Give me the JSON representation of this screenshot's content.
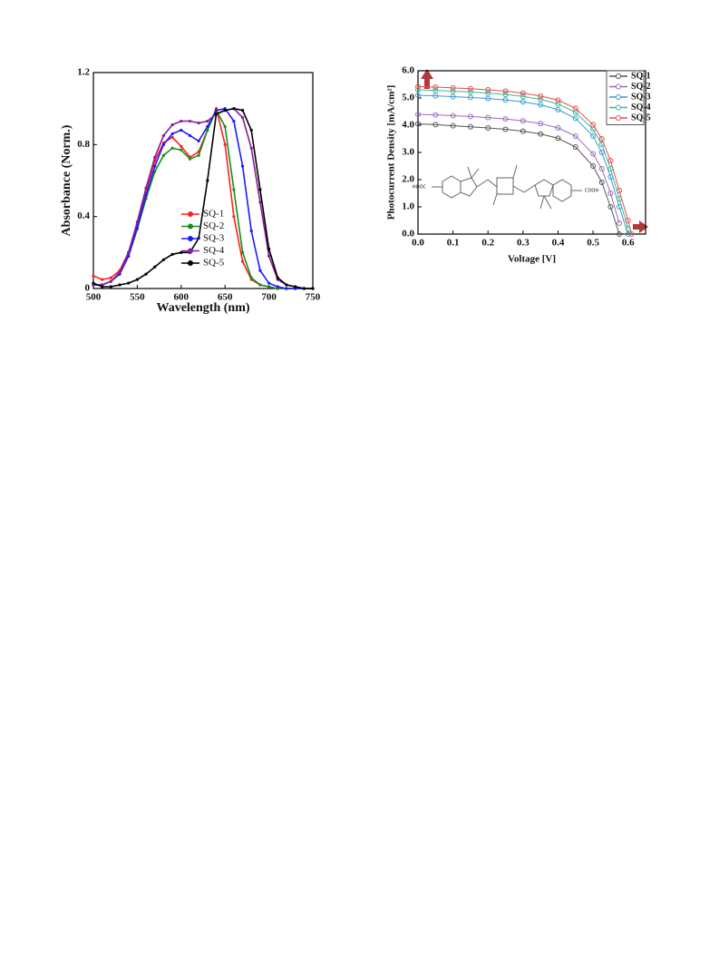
{
  "chart_data": [
    {
      "type": "line",
      "x_label": "Wavelength (nm)",
      "y_label": "Absorbance (Norm.)",
      "x": [
        500,
        510,
        520,
        530,
        540,
        550,
        560,
        570,
        580,
        590,
        600,
        610,
        620,
        630,
        640,
        650,
        660,
        670,
        680,
        690,
        700,
        710,
        720,
        730,
        740,
        750
      ],
      "series": [
        {
          "name": "SQ-1",
          "color": "#ff2020",
          "values": [
            0.07,
            0.05,
            0.06,
            0.1,
            0.2,
            0.36,
            0.55,
            0.71,
            0.81,
            0.84,
            0.79,
            0.73,
            0.76,
            0.88,
            1.0,
            0.8,
            0.4,
            0.15,
            0.05,
            0.02,
            0.01,
            0,
            0,
            0,
            0,
            0
          ]
        },
        {
          "name": "SQ-2",
          "color": "#1a8c1a",
          "values": [
            0.02,
            0.02,
            0.04,
            0.08,
            0.18,
            0.33,
            0.5,
            0.65,
            0.74,
            0.78,
            0.77,
            0.72,
            0.74,
            0.88,
            0.99,
            0.9,
            0.55,
            0.2,
            0.06,
            0.02,
            0.01,
            0,
            0,
            0,
            0,
            0
          ]
        },
        {
          "name": "SQ-3",
          "color": "#1a1aff",
          "values": [
            0.02,
            0.02,
            0.04,
            0.08,
            0.18,
            0.34,
            0.52,
            0.68,
            0.8,
            0.86,
            0.88,
            0.85,
            0.82,
            0.9,
            0.99,
            1.0,
            0.93,
            0.68,
            0.32,
            0.1,
            0.03,
            0.01,
            0,
            0,
            0,
            0
          ]
        },
        {
          "name": "SQ-4",
          "color": "#8a1a9a",
          "values": [
            0.02,
            0.02,
            0.04,
            0.09,
            0.2,
            0.37,
            0.56,
            0.73,
            0.85,
            0.91,
            0.93,
            0.93,
            0.92,
            0.93,
            0.97,
            0.99,
            1.0,
            0.95,
            0.78,
            0.48,
            0.18,
            0.05,
            0.02,
            0.01,
            0,
            0
          ]
        },
        {
          "name": "SQ-5",
          "color": "#000000",
          "values": [
            0.03,
            0.01,
            0.01,
            0.02,
            0.03,
            0.05,
            0.08,
            0.12,
            0.16,
            0.19,
            0.2,
            0.2,
            0.28,
            0.6,
            0.97,
            0.99,
            1.0,
            0.99,
            0.88,
            0.55,
            0.22,
            0.06,
            0.02,
            0.01,
            0,
            0
          ]
        }
      ],
      "xlim": [
        500,
        750
      ],
      "xticks": [
        500,
        550,
        600,
        650,
        700,
        750
      ],
      "ylim": [
        0,
        1.2
      ],
      "yticks": [
        0,
        0.4,
        0.8,
        1.2
      ],
      "marker": "dot",
      "legend": "center-left"
    },
    {
      "type": "line",
      "x_label": "Voltage [V]",
      "y_label": "Photocurrent Density [mA/cm²]",
      "annotations": [
        "HOOC",
        "COOH"
      ],
      "x": [
        0,
        0.05,
        0.1,
        0.15,
        0.2,
        0.25,
        0.3,
        0.35,
        0.4,
        0.45,
        0.5,
        0.525,
        0.55,
        0.575,
        0.6,
        0.61
      ],
      "series": [
        {
          "name": "SQ-1",
          "color": "#555555",
          "values": [
            4.05,
            4.02,
            3.98,
            3.94,
            3.9,
            3.85,
            3.78,
            3.68,
            3.52,
            3.2,
            2.5,
            1.9,
            1.0,
            0.0,
            null,
            null
          ]
        },
        {
          "name": "SQ-2",
          "color": "#9a6ab8",
          "values": [
            4.4,
            4.38,
            4.35,
            4.32,
            4.28,
            4.23,
            4.16,
            4.06,
            3.9,
            3.6,
            2.95,
            2.4,
            1.5,
            0.4,
            null,
            null
          ]
        },
        {
          "name": "SQ-3",
          "color": "#3a9ad0",
          "values": [
            5.1,
            5.08,
            5.05,
            5.02,
            4.98,
            4.93,
            4.86,
            4.75,
            4.57,
            4.25,
            3.6,
            3.0,
            2.1,
            1.0,
            0.0,
            null
          ]
        },
        {
          "name": "SQ-4",
          "color": "#3ab89a",
          "values": [
            5.3,
            5.28,
            5.25,
            5.22,
            5.18,
            5.13,
            5.06,
            4.95,
            4.78,
            4.47,
            3.85,
            3.3,
            2.4,
            1.3,
            0.2,
            null
          ]
        },
        {
          "name": "SQ-5",
          "color": "#e05050",
          "values": [
            5.42,
            5.4,
            5.37,
            5.34,
            5.3,
            5.25,
            5.18,
            5.07,
            4.92,
            4.62,
            4.02,
            3.5,
            2.7,
            1.6,
            0.5,
            0.0
          ]
        }
      ],
      "xlim": [
        0,
        0.65
      ],
      "xticks": [
        {
          "value": 0,
          "label": "0.0"
        },
        0.1,
        0.2,
        0.3,
        0.4,
        0.5,
        0.6
      ],
      "ylim": [
        0,
        6
      ],
      "yticks": [
        {
          "value": 0,
          "label": "0.0"
        },
        {
          "value": 1,
          "label": "1.0"
        },
        {
          "value": 2,
          "label": "2.0"
        },
        {
          "value": 3,
          "label": "3.0"
        },
        {
          "value": 4,
          "label": "4.0"
        },
        {
          "value": 5,
          "label": "5.0"
        },
        {
          "value": 6,
          "label": "6.0"
        }
      ],
      "marker": "circle",
      "legend": "upper-right"
    }
  ]
}
